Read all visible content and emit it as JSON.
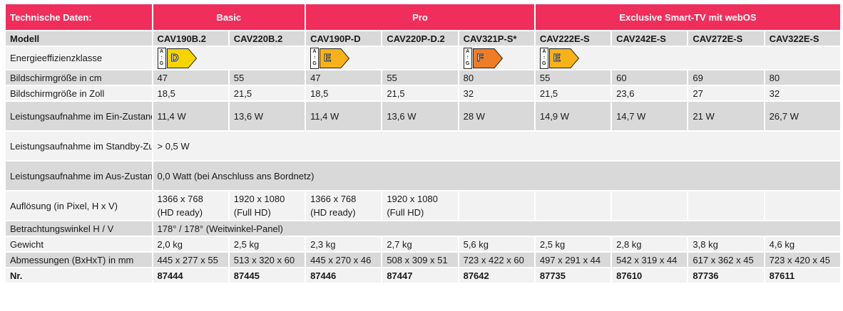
{
  "header": {
    "title": "Technische Daten:",
    "groups": [
      "Basic",
      "Pro",
      "Exclusive Smart-TV mit webOS"
    ]
  },
  "model_label": "Modell",
  "models": [
    "CAV190B.2",
    "CAV220B.2",
    "CAV190P-D",
    "CAV220P-D.2",
    "CAV321P-S*",
    "CAV222E-S",
    "CAV242E-S",
    "CAV272E-S",
    "CAV322E-S"
  ],
  "energy": {
    "label": "Energieeffizienzklasse",
    "scale_top": "A",
    "scale_bottom": "G",
    "scale_arrow": "↑",
    "basic": {
      "class": "D",
      "color": "#f5d400"
    },
    "pro_hd": {
      "class": "E",
      "color": "#f7b21b"
    },
    "pro_32": {
      "class": "F",
      "color": "#ef7d27"
    },
    "exclusive": {
      "class": "E",
      "color": "#f7b21b"
    }
  },
  "rows": {
    "size_cm": {
      "label": "Bildschirmgröße in cm",
      "values": [
        "47",
        "55",
        "47",
        "55",
        "80",
        "55",
        "60",
        "69",
        "80"
      ]
    },
    "size_zoll": {
      "label": "Bildschirmgröße in Zoll",
      "values": [
        "18,5",
        "21,5",
        "18,5",
        "21,5",
        "32",
        "21,5",
        "23,6",
        "27",
        "32"
      ]
    },
    "power_on": {
      "label": "Leistungsaufnahme im Ein-Zustand",
      "values": [
        "11,4 W",
        "13,6 W",
        "11,4 W",
        "13,6 W",
        "28 W",
        "14,9 W",
        "14,7 W",
        "21 W",
        "26,7 W"
      ]
    },
    "power_standby": {
      "label": "Leistungsaufnahme im Standby-Zustand",
      "value": "> 0,5 W"
    },
    "power_off": {
      "label": "Leistungsaufnahme im Aus-Zustand",
      "value": "0,0 Watt (bei Anschluss ans Bordnetz)"
    },
    "resolution": {
      "label": "Auflösung (in Pixel, H x V)",
      "values": [
        "1366 x 768\n(HD ready)",
        "1920 x 1080\n(Full HD)",
        "1366 x 768\n(HD ready)",
        "1920 x 1080\n(Full HD)"
      ]
    },
    "viewing_angle": {
      "label": "Betrachtungswinkel H / V",
      "value": "178° / 178° (Weitwinkel-Panel)"
    },
    "weight": {
      "label": "Gewicht",
      "values": [
        "2,0 kg",
        "2,5 kg",
        "2,3 kg",
        "2,7 kg",
        "5,6 kg",
        "2,5 kg",
        "2,8 kg",
        "3,8 kg",
        "4,6 kg"
      ]
    },
    "dimensions": {
      "label": "Abmessungen (BxHxT) in mm",
      "values": [
        "445 x 277 x 55",
        "513 x 320 x 60",
        "445 x 270 x 46",
        "508 x 309 x 51",
        "723 x 422 x 60",
        "497 x 291 x 44",
        "542 x 319 x 44",
        "617 x 362 x 45",
        "723 x 420 x 45"
      ]
    },
    "number": {
      "label": "Nr.",
      "values": [
        "87444",
        "87445",
        "87446",
        "87447",
        "87642",
        "87735",
        "87610",
        "87736",
        "87611"
      ]
    }
  }
}
